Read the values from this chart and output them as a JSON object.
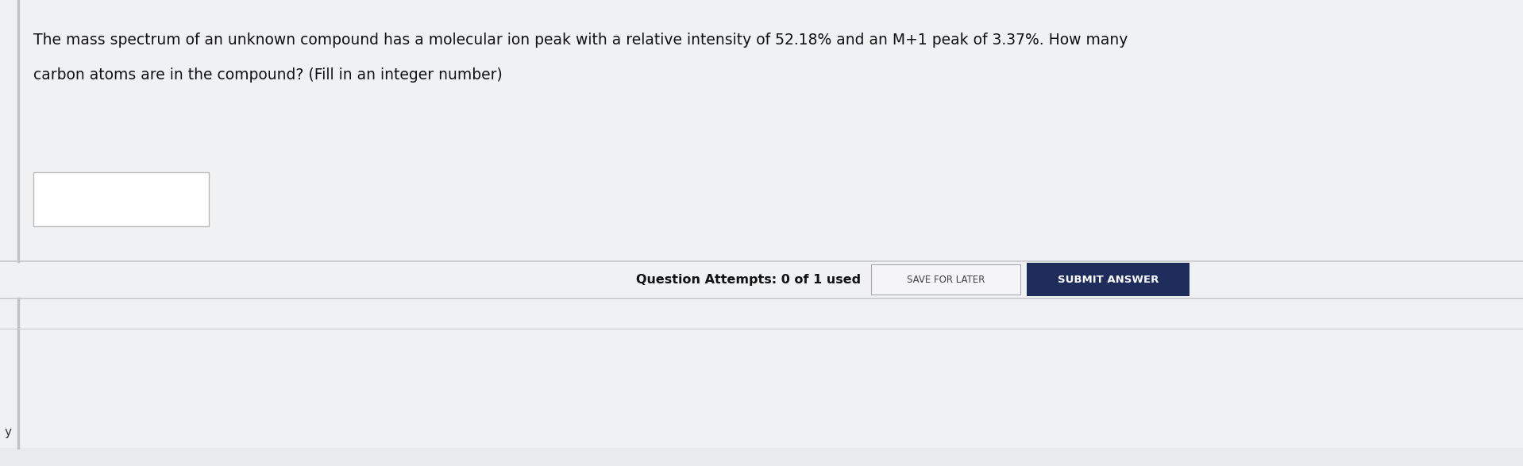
{
  "background_color": "#e8eaed",
  "top_section_color": "#f0f1f3",
  "attempts_row_color": "#eaecef",
  "bottom_section_color": "#e8eaed",
  "question_text_line1": "The mass spectrum of an unknown compound has a molecular ion peak with a relative intensity of 52.18% and an M+1 peak of 3.37%. How many",
  "question_text_line2": "carbon atoms are in the compound? (Fill in an integer number)",
  "input_box_color": "#ffffff",
  "input_box_border": "#bbbbbb",
  "attempts_text": "Question Attempts: 0 of 1 used",
  "save_button_text": "SAVE FOR LATER",
  "submit_button_text": "SUBMIT ANSWER",
  "save_button_color": "#f5f5f7",
  "submit_button_color": "#1e2d5c",
  "submit_button_text_color": "#ffffff",
  "save_button_text_color": "#444444",
  "attempts_text_color": "#111111",
  "question_text_color": "#111111",
  "divider_color": "#c8cace",
  "left_border_color": "#c0c3c8",
  "bottom_left_label": "y",
  "bottom_left_label_color": "#333333",
  "question_fontsize": 13.5,
  "attempts_fontsize": 11.5,
  "save_fontsize": 8.5,
  "submit_fontsize": 9.5
}
